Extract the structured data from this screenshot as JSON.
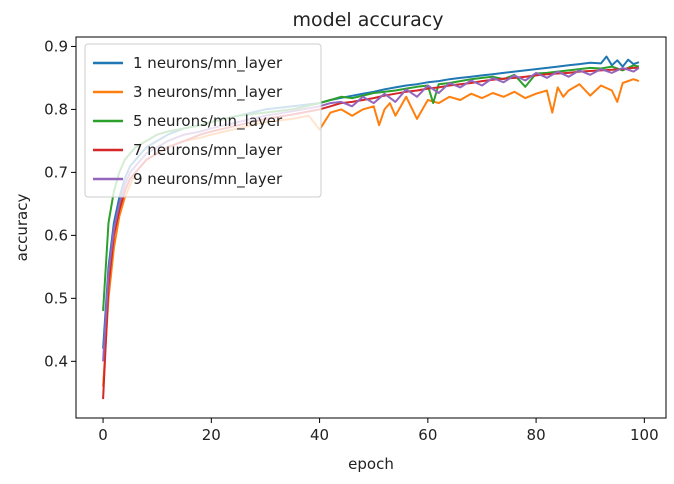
{
  "chart_data": {
    "type": "line",
    "title": "model accuracy",
    "xlabel": "epoch",
    "ylabel": "accuracy",
    "xlim": [
      -5,
      104
    ],
    "ylim": [
      0.31,
      0.915
    ],
    "xticks": [
      0,
      20,
      40,
      60,
      80,
      100
    ],
    "yticks": [
      0.4,
      0.5,
      0.6,
      0.7,
      0.8,
      0.9
    ],
    "xtick_labels": [
      "0",
      "20",
      "40",
      "60",
      "80",
      "100"
    ],
    "ytick_labels": [
      "0.4",
      "0.5",
      "0.6",
      "0.7",
      "0.8",
      "0.9"
    ],
    "legend_position": "upper-left",
    "grid": false,
    "series": [
      {
        "name": "1 neurons/mn_layer",
        "color": "#1f77b4",
        "x": [
          0,
          1,
          2,
          3,
          4,
          5,
          6,
          8,
          10,
          12,
          15,
          18,
          20,
          25,
          30,
          35,
          40,
          42,
          45,
          48,
          50,
          52,
          54,
          56,
          58,
          60,
          62,
          64,
          66,
          68,
          70,
          72,
          74,
          76,
          78,
          80,
          82,
          84,
          86,
          88,
          90,
          92,
          93,
          94,
          95,
          96,
          97,
          98,
          99
        ],
        "y": [
          0.42,
          0.55,
          0.62,
          0.66,
          0.69,
          0.71,
          0.72,
          0.74,
          0.75,
          0.76,
          0.77,
          0.775,
          0.78,
          0.79,
          0.8,
          0.805,
          0.81,
          0.815,
          0.82,
          0.825,
          0.828,
          0.832,
          0.835,
          0.838,
          0.84,
          0.843,
          0.845,
          0.848,
          0.85,
          0.852,
          0.854,
          0.856,
          0.858,
          0.86,
          0.862,
          0.864,
          0.866,
          0.868,
          0.87,
          0.872,
          0.874,
          0.873,
          0.884,
          0.87,
          0.878,
          0.868,
          0.879,
          0.872,
          0.875
        ]
      },
      {
        "name": "3 neurons/mn_layer",
        "color": "#ff7f0e",
        "x": [
          0,
          1,
          2,
          3,
          4,
          5,
          6,
          8,
          10,
          12,
          15,
          18,
          20,
          25,
          30,
          35,
          38,
          40,
          42,
          44,
          46,
          48,
          50,
          51,
          52,
          53,
          54,
          56,
          58,
          60,
          62,
          64,
          66,
          68,
          70,
          72,
          74,
          76,
          78,
          80,
          82,
          83,
          84,
          85,
          86,
          88,
          90,
          92,
          94,
          95,
          96,
          98,
          99
        ],
        "y": [
          0.36,
          0.5,
          0.58,
          0.63,
          0.66,
          0.68,
          0.7,
          0.72,
          0.73,
          0.74,
          0.75,
          0.755,
          0.76,
          0.77,
          0.78,
          0.785,
          0.79,
          0.768,
          0.795,
          0.8,
          0.79,
          0.8,
          0.805,
          0.775,
          0.8,
          0.81,
          0.79,
          0.82,
          0.785,
          0.815,
          0.81,
          0.82,
          0.815,
          0.825,
          0.818,
          0.826,
          0.82,
          0.828,
          0.818,
          0.825,
          0.83,
          0.795,
          0.835,
          0.82,
          0.83,
          0.84,
          0.822,
          0.838,
          0.83,
          0.812,
          0.842,
          0.848,
          0.845
        ]
      },
      {
        "name": "5 neurons/mn_layer",
        "color": "#2ca02c",
        "x": [
          0,
          1,
          2,
          3,
          4,
          5,
          6,
          8,
          10,
          12,
          15,
          18,
          20,
          25,
          30,
          35,
          40,
          42,
          44,
          46,
          48,
          50,
          52,
          54,
          56,
          58,
          60,
          61,
          62,
          64,
          66,
          68,
          70,
          72,
          74,
          76,
          78,
          80,
          82,
          84,
          86,
          88,
          90,
          92,
          94,
          96,
          98,
          99
        ],
        "y": [
          0.48,
          0.62,
          0.67,
          0.7,
          0.72,
          0.73,
          0.74,
          0.75,
          0.76,
          0.765,
          0.77,
          0.775,
          0.78,
          0.79,
          0.795,
          0.8,
          0.81,
          0.815,
          0.82,
          0.818,
          0.822,
          0.826,
          0.828,
          0.83,
          0.833,
          0.836,
          0.838,
          0.81,
          0.84,
          0.842,
          0.845,
          0.848,
          0.85,
          0.852,
          0.848,
          0.855,
          0.836,
          0.857,
          0.858,
          0.86,
          0.862,
          0.864,
          0.866,
          0.865,
          0.868,
          0.862,
          0.87,
          0.868
        ]
      },
      {
        "name": "7 neurons/mn_layer",
        "color": "#d62728",
        "x": [
          0,
          1,
          2,
          3,
          4,
          5,
          6,
          8,
          10,
          12,
          15,
          18,
          20,
          25,
          30,
          35,
          40,
          42,
          44,
          46,
          48,
          50,
          52,
          54,
          56,
          58,
          60,
          62,
          64,
          66,
          68,
          70,
          72,
          74,
          76,
          78,
          80,
          82,
          84,
          86,
          88,
          90,
          92,
          94,
          96,
          98,
          99
        ],
        "y": [
          0.34,
          0.52,
          0.6,
          0.64,
          0.67,
          0.69,
          0.7,
          0.72,
          0.73,
          0.74,
          0.75,
          0.76,
          0.765,
          0.775,
          0.785,
          0.792,
          0.8,
          0.805,
          0.81,
          0.812,
          0.815,
          0.818,
          0.822,
          0.825,
          0.828,
          0.83,
          0.833,
          0.835,
          0.838,
          0.84,
          0.842,
          0.845,
          0.847,
          0.849,
          0.85,
          0.852,
          0.854,
          0.856,
          0.857,
          0.858,
          0.86,
          0.861,
          0.862,
          0.863,
          0.864,
          0.866,
          0.866
        ]
      },
      {
        "name": "9 neurons/mn_layer",
        "color": "#9467bd",
        "x": [
          0,
          1,
          2,
          3,
          4,
          5,
          6,
          8,
          10,
          12,
          15,
          18,
          20,
          25,
          30,
          35,
          40,
          42,
          44,
          46,
          48,
          50,
          52,
          54,
          56,
          58,
          60,
          62,
          64,
          66,
          68,
          70,
          72,
          74,
          76,
          78,
          80,
          82,
          84,
          86,
          88,
          90,
          92,
          94,
          96,
          98,
          99
        ],
        "y": [
          0.4,
          0.54,
          0.61,
          0.65,
          0.68,
          0.7,
          0.71,
          0.73,
          0.74,
          0.75,
          0.76,
          0.765,
          0.77,
          0.78,
          0.79,
          0.797,
          0.805,
          0.81,
          0.812,
          0.805,
          0.82,
          0.81,
          0.825,
          0.812,
          0.832,
          0.82,
          0.838,
          0.826,
          0.842,
          0.835,
          0.846,
          0.838,
          0.85,
          0.843,
          0.854,
          0.846,
          0.858,
          0.85,
          0.86,
          0.852,
          0.862,
          0.855,
          0.864,
          0.858,
          0.866,
          0.86,
          0.866
        ]
      }
    ]
  }
}
